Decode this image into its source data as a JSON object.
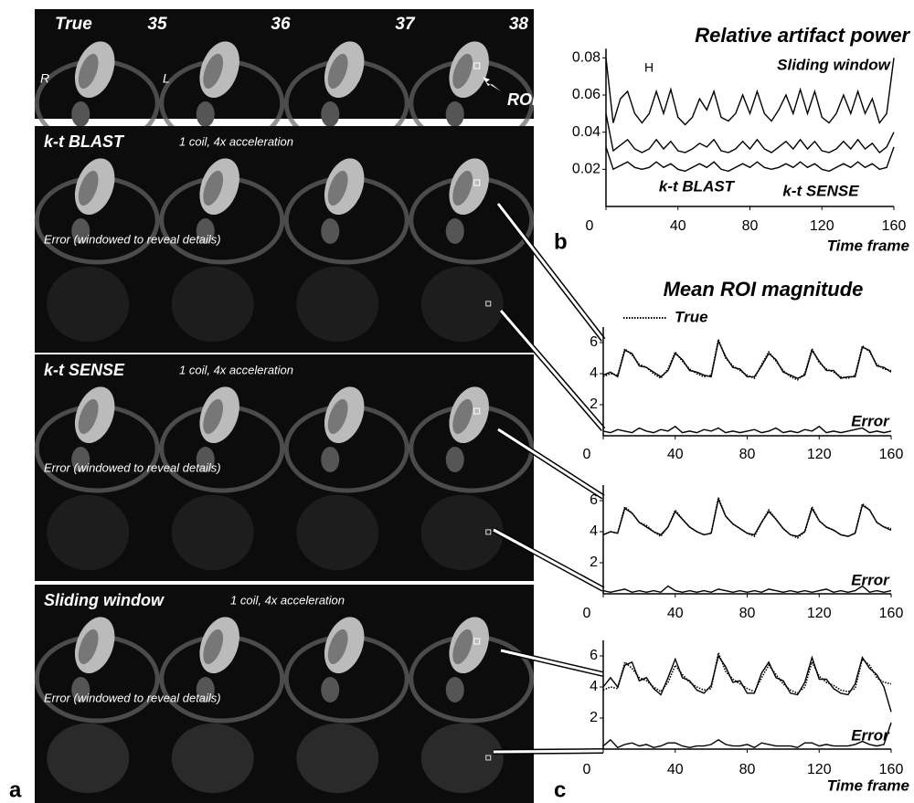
{
  "panel_a": {
    "label": "a",
    "true_row": {
      "label": "True",
      "frames": [
        "35",
        "36",
        "37",
        "38"
      ],
      "left_marker": "R",
      "right_marker": "L",
      "roi": "ROI"
    },
    "methods": [
      {
        "name": "k-t BLAST",
        "note": "1 coil, 4x acceleration",
        "error_label": "Error (windowed to reveal details)"
      },
      {
        "name": "k-t SENSE",
        "note": "1 coil, 4x acceleration",
        "error_label": "Error (windowed to reveal details)"
      },
      {
        "name": "Sliding window",
        "note": "1 coil, 4x acceleration",
        "error_label": "Error (windowed to reveal details)"
      }
    ]
  },
  "chart_data": [
    {
      "type": "line",
      "title": "Relative artifact power",
      "panel_label": "b",
      "xlabel": "Time frame",
      "annotations": [
        "H"
      ],
      "x": [
        0,
        4,
        8,
        12,
        16,
        20,
        24,
        28,
        32,
        36,
        40,
        44,
        48,
        52,
        56,
        60,
        64,
        68,
        72,
        76,
        80,
        84,
        88,
        92,
        96,
        100,
        104,
        108,
        112,
        116,
        120,
        124,
        128,
        132,
        136,
        140,
        144,
        148,
        152,
        156,
        160
      ],
      "xlim": [
        0,
        160
      ],
      "xticks": [
        0,
        40,
        80,
        120,
        160
      ],
      "ylim": [
        0,
        0.085
      ],
      "yticks": [
        0.02,
        0.04,
        0.06,
        0.08
      ],
      "series": [
        {
          "name": "Sliding window",
          "color": "#000000",
          "style": "solid",
          "values": [
            0.08,
            0.045,
            0.058,
            0.062,
            0.05,
            0.045,
            0.05,
            0.062,
            0.05,
            0.063,
            0.048,
            0.044,
            0.048,
            0.058,
            0.052,
            0.062,
            0.048,
            0.046,
            0.05,
            0.06,
            0.05,
            0.062,
            0.05,
            0.046,
            0.052,
            0.06,
            0.05,
            0.063,
            0.05,
            0.062,
            0.048,
            0.045,
            0.05,
            0.06,
            0.05,
            0.062,
            0.05,
            0.058,
            0.045,
            0.05,
            0.08
          ]
        },
        {
          "name": "k-t BLAST",
          "color": "#000000",
          "style": "solid",
          "values": [
            0.05,
            0.03,
            0.033,
            0.036,
            0.031,
            0.029,
            0.031,
            0.036,
            0.031,
            0.035,
            0.03,
            0.029,
            0.031,
            0.034,
            0.032,
            0.036,
            0.03,
            0.029,
            0.031,
            0.035,
            0.031,
            0.036,
            0.031,
            0.029,
            0.032,
            0.035,
            0.031,
            0.036,
            0.031,
            0.035,
            0.03,
            0.029,
            0.031,
            0.035,
            0.031,
            0.036,
            0.031,
            0.034,
            0.029,
            0.032,
            0.04
          ]
        },
        {
          "name": "k-t SENSE",
          "color": "#000000",
          "style": "solid",
          "values": [
            0.032,
            0.02,
            0.022,
            0.024,
            0.021,
            0.02,
            0.021,
            0.024,
            0.021,
            0.023,
            0.02,
            0.019,
            0.021,
            0.023,
            0.021,
            0.024,
            0.02,
            0.019,
            0.021,
            0.023,
            0.021,
            0.024,
            0.021,
            0.02,
            0.021,
            0.023,
            0.021,
            0.024,
            0.021,
            0.023,
            0.02,
            0.019,
            0.021,
            0.023,
            0.021,
            0.024,
            0.021,
            0.023,
            0.02,
            0.021,
            0.032
          ]
        }
      ]
    },
    {
      "type": "line",
      "title": "Mean ROI magnitude",
      "x": [
        0,
        4,
        8,
        12,
        16,
        20,
        24,
        28,
        32,
        36,
        40,
        44,
        48,
        52,
        56,
        60,
        64,
        68,
        72,
        76,
        80,
        84,
        88,
        92,
        96,
        100,
        104,
        108,
        112,
        116,
        120,
        124,
        128,
        132,
        136,
        140,
        144,
        148,
        152,
        156,
        160
      ],
      "xlim": [
        0,
        160
      ],
      "xticks": [
        0,
        40,
        80,
        120,
        160
      ],
      "ylim": [
        0,
        7
      ],
      "yticks": [
        2,
        4,
        6
      ],
      "series": [
        {
          "name": "True",
          "color": "#000000",
          "style": "dotted",
          "values": [
            3.8,
            4.0,
            3.9,
            5.6,
            5.2,
            4.6,
            4.4,
            4.0,
            3.7,
            4.3,
            5.4,
            4.8,
            4.3,
            4.0,
            3.8,
            3.9,
            6.2,
            5.0,
            4.5,
            4.2,
            3.9,
            3.7,
            4.6,
            5.4,
            4.8,
            4.2,
            3.8,
            3.6,
            4.0,
            5.6,
            4.7,
            4.3,
            4.1,
            3.8,
            3.7,
            3.9,
            5.8,
            5.4,
            4.6,
            4.3,
            4.2
          ]
        },
        {
          "color": "#000000",
          "style": "solid",
          "values": [
            3.9,
            4.1,
            3.8,
            5.5,
            5.3,
            4.5,
            4.4,
            4.1,
            3.8,
            4.2,
            5.3,
            4.9,
            4.2,
            4.1,
            3.9,
            3.8,
            6.1,
            5.1,
            4.4,
            4.3,
            3.8,
            3.8,
            4.5,
            5.3,
            4.9,
            4.1,
            3.9,
            3.7,
            3.9,
            5.5,
            4.8,
            4.2,
            4.2,
            3.7,
            3.8,
            3.8,
            5.7,
            5.5,
            4.5,
            4.4,
            4.1
          ]
        },
        {
          "name": "Error",
          "color": "#000000",
          "style": "solid",
          "values": [
            0.3,
            0.2,
            0.4,
            0.3,
            0.2,
            0.5,
            0.3,
            0.2,
            0.4,
            0.3,
            0.6,
            0.2,
            0.3,
            0.2,
            0.4,
            0.3,
            0.5,
            0.2,
            0.3,
            0.2,
            0.3,
            0.4,
            0.2,
            0.3,
            0.5,
            0.2,
            0.3,
            0.2,
            0.4,
            0.3,
            0.6,
            0.2,
            0.3,
            0.2,
            0.3,
            0.4,
            0.5,
            0.2,
            0.3,
            0.2,
            0.3
          ]
        }
      ]
    },
    {
      "type": "line",
      "x": [
        0,
        4,
        8,
        12,
        16,
        20,
        24,
        28,
        32,
        36,
        40,
        44,
        48,
        52,
        56,
        60,
        64,
        68,
        72,
        76,
        80,
        84,
        88,
        92,
        96,
        100,
        104,
        108,
        112,
        116,
        120,
        124,
        128,
        132,
        136,
        140,
        144,
        148,
        152,
        156,
        160
      ],
      "xlim": [
        0,
        160
      ],
      "xticks": [
        0,
        40,
        80,
        120,
        160
      ],
      "ylim": [
        0,
        7
      ],
      "yticks": [
        2,
        4,
        6
      ],
      "series": [
        {
          "color": "#000000",
          "style": "dotted",
          "values": [
            3.8,
            4.0,
            3.9,
            5.6,
            5.2,
            4.6,
            4.4,
            4.0,
            3.7,
            4.3,
            5.4,
            4.8,
            4.3,
            4.0,
            3.8,
            3.9,
            6.2,
            5.0,
            4.5,
            4.2,
            3.9,
            3.7,
            4.6,
            5.4,
            4.8,
            4.2,
            3.8,
            3.6,
            4.0,
            5.6,
            4.7,
            4.3,
            4.1,
            3.8,
            3.7,
            3.9,
            5.8,
            5.4,
            4.6,
            4.3,
            4.2
          ]
        },
        {
          "color": "#000000",
          "style": "solid",
          "values": [
            3.8,
            4.0,
            3.9,
            5.5,
            5.2,
            4.6,
            4.3,
            4.0,
            3.8,
            4.3,
            5.3,
            4.8,
            4.3,
            4.0,
            3.8,
            3.9,
            6.1,
            5.0,
            4.5,
            4.2,
            3.9,
            3.8,
            4.6,
            5.3,
            4.8,
            4.2,
            3.8,
            3.7,
            4.0,
            5.5,
            4.7,
            4.3,
            4.1,
            3.8,
            3.7,
            3.9,
            5.7,
            5.4,
            4.6,
            4.3,
            4.1
          ]
        },
        {
          "name": "Error",
          "color": "#000000",
          "style": "solid",
          "values": [
            0.2,
            0.1,
            0.2,
            0.3,
            0.1,
            0.2,
            0.1,
            0.2,
            0.1,
            0.5,
            0.2,
            0.1,
            0.2,
            0.1,
            0.2,
            0.1,
            0.3,
            0.2,
            0.1,
            0.2,
            0.1,
            0.2,
            0.1,
            0.3,
            0.2,
            0.1,
            0.2,
            0.1,
            0.2,
            0.1,
            0.2,
            0.3,
            0.1,
            0.2,
            0.1,
            0.2,
            0.5,
            0.1,
            0.2,
            0.1,
            0.2
          ]
        }
      ]
    },
    {
      "type": "line",
      "panel_label": "c",
      "xlabel": "Time frame",
      "x": [
        0,
        4,
        8,
        12,
        16,
        20,
        24,
        28,
        32,
        36,
        40,
        44,
        48,
        52,
        56,
        60,
        64,
        68,
        72,
        76,
        80,
        84,
        88,
        92,
        96,
        100,
        104,
        108,
        112,
        116,
        120,
        124,
        128,
        132,
        136,
        140,
        144,
        148,
        152,
        156,
        160
      ],
      "xlim": [
        0,
        160
      ],
      "xticks": [
        0,
        40,
        80,
        120,
        160
      ],
      "ylim": [
        0,
        7
      ],
      "yticks": [
        2,
        4,
        6
      ],
      "series": [
        {
          "color": "#000000",
          "style": "dotted",
          "values": [
            3.8,
            4.0,
            3.9,
            5.6,
            5.2,
            4.6,
            4.4,
            4.0,
            3.7,
            4.3,
            5.4,
            4.8,
            4.3,
            4.0,
            3.8,
            3.9,
            6.2,
            5.0,
            4.5,
            4.2,
            3.9,
            3.7,
            4.6,
            5.4,
            4.8,
            4.2,
            3.8,
            3.6,
            4.0,
            5.6,
            4.7,
            4.3,
            4.1,
            3.8,
            3.7,
            3.9,
            5.8,
            5.4,
            4.6,
            4.3,
            4.2
          ]
        },
        {
          "color": "#000000",
          "style": "solid",
          "values": [
            4.0,
            4.6,
            4.0,
            5.4,
            5.6,
            4.4,
            4.6,
            3.9,
            3.5,
            4.6,
            5.8,
            4.6,
            4.4,
            3.8,
            3.6,
            4.1,
            6.0,
            5.3,
            4.3,
            4.4,
            3.6,
            3.6,
            4.9,
            5.6,
            4.6,
            4.4,
            3.6,
            3.5,
            4.3,
            5.9,
            4.5,
            4.5,
            3.9,
            3.6,
            3.5,
            4.2,
            5.9,
            5.2,
            4.8,
            4.0,
            2.4
          ]
        },
        {
          "name": "Error",
          "color": "#000000",
          "style": "solid",
          "values": [
            0.2,
            0.6,
            0.1,
            0.3,
            0.4,
            0.2,
            0.3,
            0.1,
            0.2,
            0.4,
            0.4,
            0.2,
            0.1,
            0.2,
            0.2,
            0.3,
            0.6,
            0.3,
            0.2,
            0.2,
            0.3,
            0.1,
            0.4,
            0.3,
            0.2,
            0.2,
            0.2,
            0.1,
            0.4,
            0.4,
            0.2,
            0.3,
            0.2,
            0.2,
            0.2,
            0.3,
            0.5,
            0.3,
            0.2,
            0.3,
            1.7
          ]
        }
      ]
    }
  ]
}
